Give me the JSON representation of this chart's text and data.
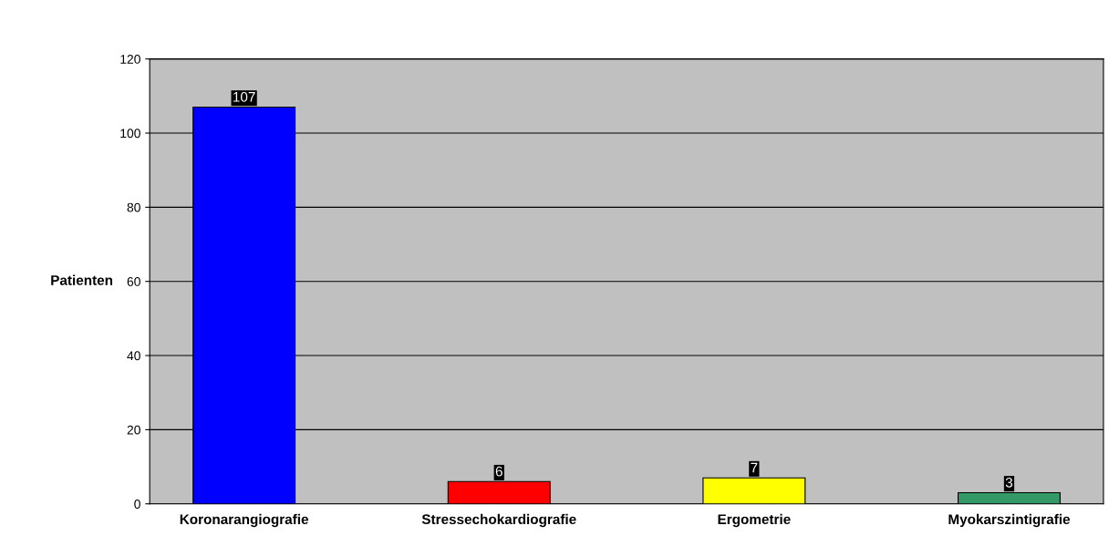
{
  "chart_data": {
    "type": "bar",
    "ylabel": "Patienten",
    "categories": [
      "Koronarangiografie",
      "Stressechokardiografie",
      "Ergometrie",
      "Myokarszintigrafie"
    ],
    "values": [
      107,
      6,
      7,
      3
    ],
    "colors": [
      "#0000ff",
      "#ff0000",
      "#ffff00",
      "#339966"
    ],
    "ylim": [
      0,
      120
    ],
    "yticks": [
      0,
      20,
      40,
      60,
      80,
      100,
      120
    ],
    "grid": "y",
    "data_labels": true,
    "legend": false
  }
}
